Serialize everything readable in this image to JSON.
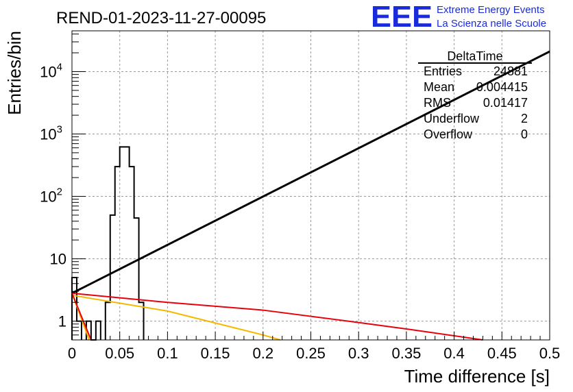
{
  "chart_data": {
    "type": "histogram",
    "title": "REND-01-2023-11-27-00095",
    "xlabel": "Time difference [s]",
    "ylabel": "Entries/bin",
    "xlim": [
      0,
      0.5
    ],
    "ylim": [
      0.5,
      45000
    ],
    "y_scale": "log",
    "grid": true,
    "x_ticks": [
      {
        "v": 0,
        "label": "0"
      },
      {
        "v": 0.05,
        "label": "0.05"
      },
      {
        "v": 0.1,
        "label": "0.1"
      },
      {
        "v": 0.15,
        "label": "0.15"
      },
      {
        "v": 0.2,
        "label": "0.2"
      },
      {
        "v": 0.25,
        "label": "0.25"
      },
      {
        "v": 0.3,
        "label": "0.3"
      },
      {
        "v": 0.35,
        "label": "0.35"
      },
      {
        "v": 0.4,
        "label": "0.4"
      },
      {
        "v": 0.45,
        "label": "0.45"
      },
      {
        "v": 0.5,
        "label": "0.5"
      }
    ],
    "y_ticks": [
      {
        "v": 1,
        "base": "1",
        "exp": ""
      },
      {
        "v": 10,
        "base": "10",
        "exp": ""
      },
      {
        "v": 100,
        "base": "10",
        "exp": "2"
      },
      {
        "v": 1000,
        "base": "10",
        "exp": "3"
      },
      {
        "v": 10000,
        "base": "10",
        "exp": "4"
      }
    ],
    "histogram": {
      "name": "DeltaTime",
      "color": "#000000",
      "bins": [
        {
          "x0": 0.0,
          "x1": 0.005,
          "y": 5
        },
        {
          "x0": 0.005,
          "x1": 0.01,
          "y": 1
        },
        {
          "x0": 0.015,
          "x1": 0.02,
          "y": 1
        },
        {
          "x0": 0.02,
          "x1": 0.025,
          "y": 0.5
        },
        {
          "x0": 0.025,
          "x1": 0.03,
          "y": 1
        },
        {
          "x0": 0.035,
          "x1": 0.04,
          "y": 2
        },
        {
          "x0": 0.04,
          "x1": 0.045,
          "y": 50
        },
        {
          "x0": 0.045,
          "x1": 0.05,
          "y": 300
        },
        {
          "x0": 0.05,
          "x1": 0.055,
          "y": 620
        },
        {
          "x0": 0.055,
          "x1": 0.06,
          "y": 620
        },
        {
          "x0": 0.06,
          "x1": 0.065,
          "y": 300
        },
        {
          "x0": 0.065,
          "x1": 0.07,
          "y": 45
        },
        {
          "x0": 0.07,
          "x1": 0.075,
          "y": 2
        }
      ]
    },
    "lines": [
      {
        "name": "fit-black",
        "color": "#000000",
        "points": [
          [
            0,
            2.8
          ],
          [
            0.5,
            21000
          ]
        ]
      },
      {
        "name": "fit-red",
        "color": "#e8000b",
        "points": [
          [
            0,
            2.8
          ],
          [
            0.1,
            2.0
          ],
          [
            0.2,
            1.5
          ],
          [
            0.3,
            0.95
          ],
          [
            0.35,
            0.75
          ],
          [
            0.43,
            0.5
          ]
        ]
      },
      {
        "name": "fit-orange",
        "color": "#f5b800",
        "points": [
          [
            0,
            2.6
          ],
          [
            0.1,
            1.45
          ],
          [
            0.2,
            0.6
          ],
          [
            0.218,
            0.5
          ]
        ]
      },
      {
        "name": "fit-orange-steep",
        "color": "#f5b800",
        "points": [
          [
            0,
            2.8
          ],
          [
            0.018,
            0.5
          ]
        ]
      },
      {
        "name": "fit-red-steep",
        "color": "#e8000b",
        "points": [
          [
            0,
            2.8
          ],
          [
            0.02,
            0.5
          ]
        ]
      }
    ]
  },
  "stats_box": {
    "title": "DeltaTime",
    "rows": [
      {
        "label": "Entries",
        "value": "24881"
      },
      {
        "label": "Mean",
        "value": "0.004415"
      },
      {
        "label": "RMS",
        "value": "0.01417"
      },
      {
        "label": "Underflow",
        "value": "2"
      },
      {
        "label": "Overflow",
        "value": "0"
      }
    ]
  },
  "logo": {
    "mark": "EEE",
    "line1": "Extreme Energy Events",
    "line2": "La Scienza nelle Scuole",
    "color": "#1a2bdb"
  }
}
